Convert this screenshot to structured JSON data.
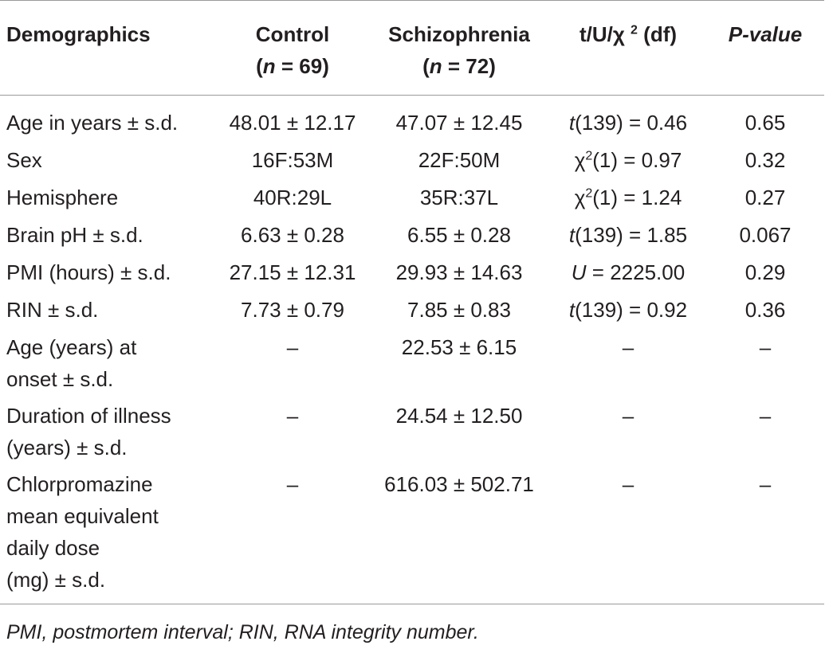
{
  "table": {
    "headers": {
      "demographics": "Demographics",
      "control": "Control",
      "control_n": "(n = 69)",
      "control_n_label": "n",
      "control_n_value": " = 69)",
      "schizophrenia": "Schizophrenia",
      "schizophrenia_n_label": "n",
      "schizophrenia_n_value": " = 72)",
      "stat_prefix": "t/U/χ ",
      "stat_sup": "2",
      "stat_suffix": " (df)",
      "pvalue": "P-value"
    },
    "rows": [
      {
        "label": "Age in years ± s.d.",
        "control": "48.01 ± 12.17",
        "schizophrenia": "47.07 ± 12.45",
        "stat_var": "t",
        "stat_rest": "(139) = 0.46",
        "p": "0.65"
      },
      {
        "label": "Sex",
        "control": "16F:53M",
        "schizophrenia": "22F:50M",
        "stat_var": "χ",
        "stat_sup": "2",
        "stat_rest": "(1) = 0.97",
        "p": "0.32"
      },
      {
        "label": "Hemisphere",
        "control": "40R:29L",
        "schizophrenia": "35R:37L",
        "stat_var": "χ",
        "stat_sup": "2",
        "stat_rest": "(1) = 1.24",
        "p": "0.27"
      },
      {
        "label": "Brain pH ± s.d.",
        "control": "6.63 ± 0.28",
        "schizophrenia": "6.55 ± 0.28",
        "stat_var": "t",
        "stat_rest": "(139) = 1.85",
        "p": "0.067"
      },
      {
        "label": "PMI (hours) ± s.d.",
        "control": "27.15 ± 12.31",
        "schizophrenia": "29.93 ± 14.63",
        "stat_var": "U",
        "stat_rest": " = 2225.00",
        "p": "0.29"
      },
      {
        "label": "RIN ± s.d.",
        "control": "7.73 ± 0.79",
        "schizophrenia": "7.85 ± 0.83",
        "stat_var": "t",
        "stat_rest": "(139) = 0.92",
        "p": "0.36"
      },
      {
        "label_lines": [
          "Age (years) at",
          "onset ± s.d."
        ],
        "control": "–",
        "schizophrenia": "22.53 ± 6.15",
        "stat": "–",
        "p": "–"
      },
      {
        "label_lines": [
          "Duration of illness",
          "(years) ± s.d."
        ],
        "control": "–",
        "schizophrenia": "24.54 ± 12.50",
        "stat": "–",
        "p": "–"
      },
      {
        "label_lines": [
          "Chlorpromazine",
          "mean equivalent",
          "daily dose",
          "(mg) ± s.d."
        ],
        "control": "–",
        "schizophrenia": "616.03 ± 502.71",
        "stat": "–",
        "p": "–"
      }
    ]
  },
  "footnote": "PMI, postmortem interval; RIN, RNA integrity number."
}
